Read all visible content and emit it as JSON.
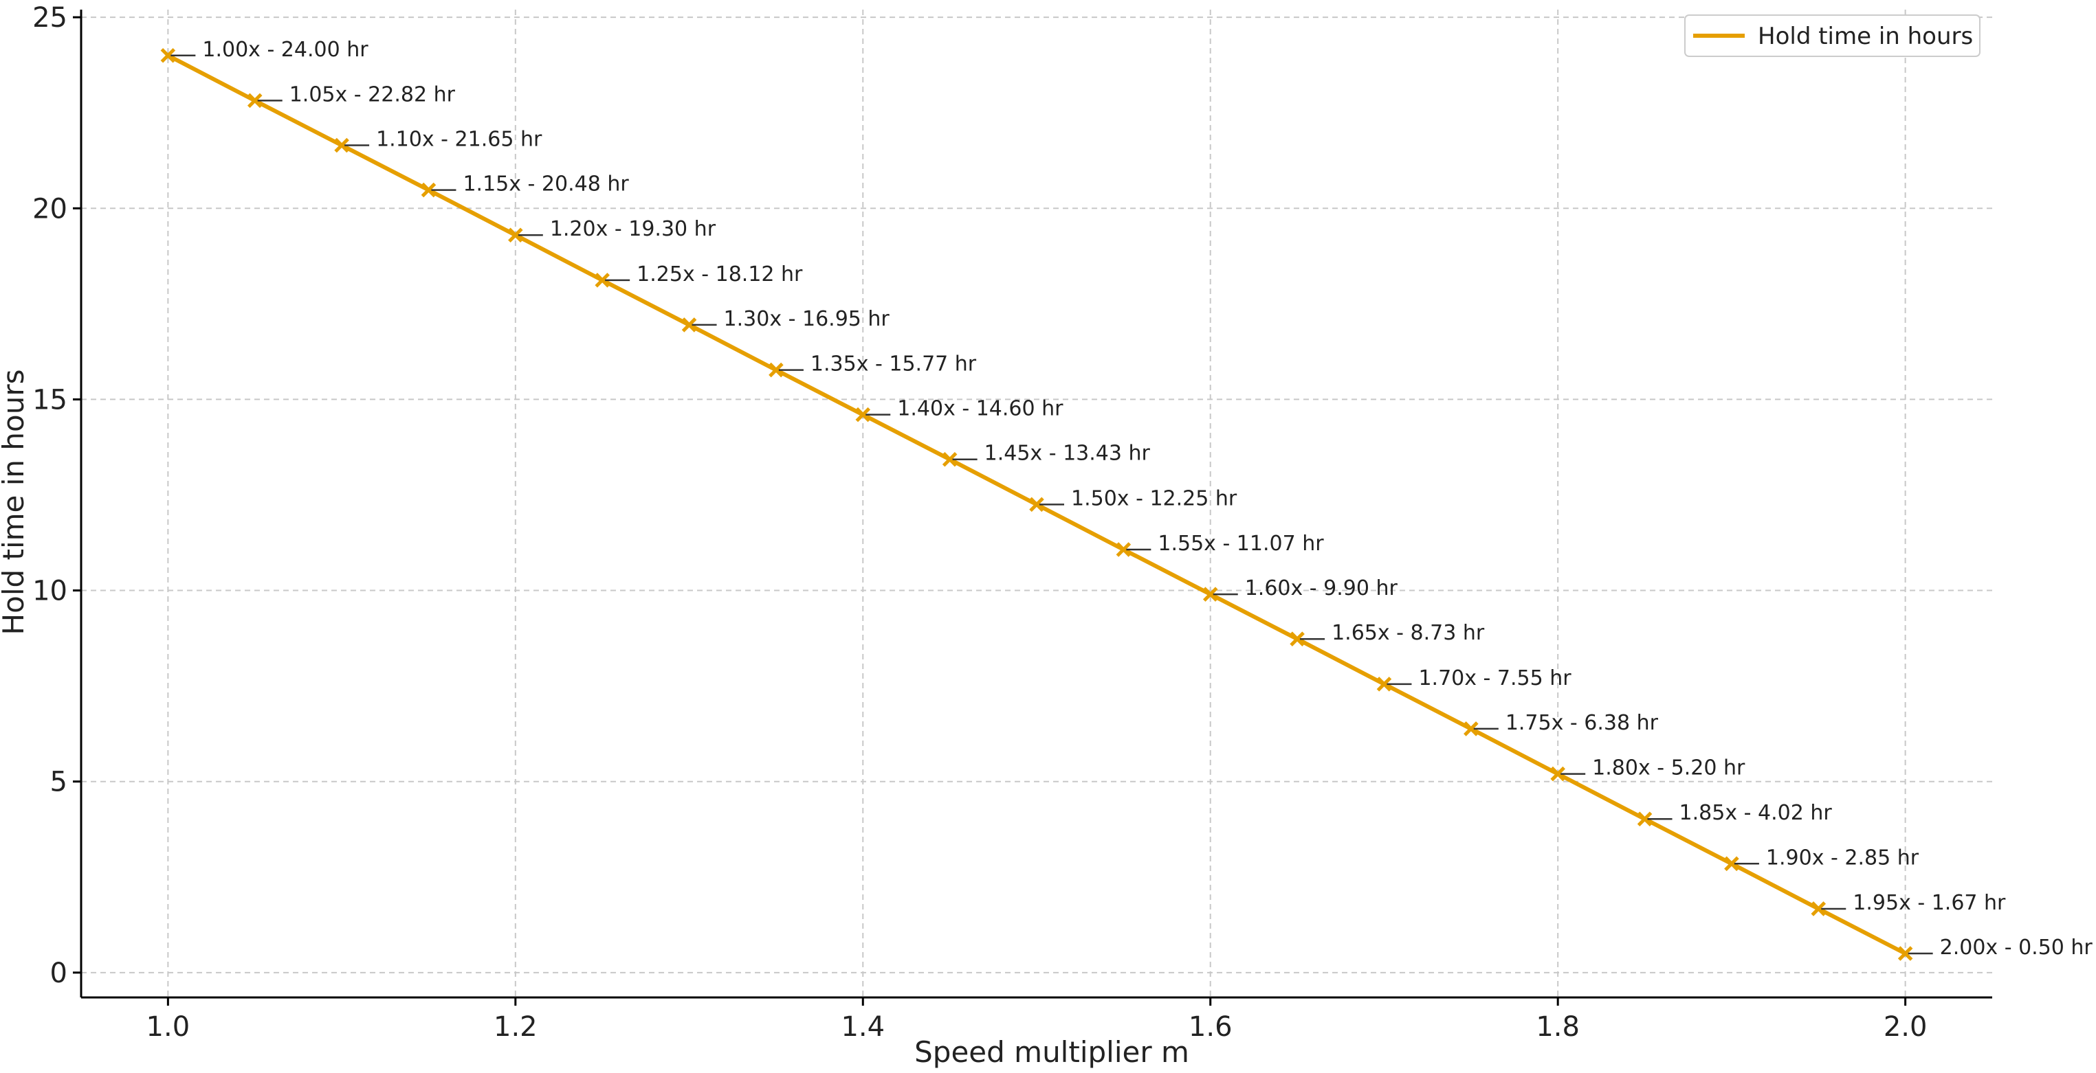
{
  "chart_data": {
    "type": "line",
    "title": "",
    "xlabel": "Speed multiplier m",
    "ylabel": "Hold time in hours",
    "xlim": [
      0.95,
      2.05
    ],
    "ylim": [
      -0.65,
      25.2
    ],
    "xticks": [
      1.0,
      1.2,
      1.4,
      1.6,
      1.8,
      2.0
    ],
    "xtick_labels": [
      "1.0",
      "1.2",
      "1.4",
      "1.6",
      "1.8",
      "2.0"
    ],
    "yticks": [
      0,
      5,
      10,
      15,
      20,
      25
    ],
    "ytick_labels": [
      "0",
      "5",
      "10",
      "15",
      "20",
      "25"
    ],
    "grid": true,
    "legend_position": "top-right",
    "marker": "x",
    "series": [
      {
        "name": "Hold time in hours",
        "color": "#E69F00",
        "x": [
          1.0,
          1.05,
          1.1,
          1.15,
          1.2,
          1.25,
          1.3,
          1.35,
          1.4,
          1.45,
          1.5,
          1.55,
          1.6,
          1.65,
          1.7,
          1.75,
          1.8,
          1.85,
          1.9,
          1.95,
          2.0
        ],
        "y": [
          24.0,
          22.82,
          21.65,
          20.48,
          19.3,
          18.12,
          16.95,
          15.77,
          14.6,
          13.43,
          12.25,
          11.07,
          9.9,
          8.73,
          7.55,
          6.38,
          5.2,
          4.02,
          2.85,
          1.67,
          0.5
        ],
        "labels": [
          "1.00x - 24.00 hr",
          "1.05x - 22.82 hr",
          "1.10x - 21.65 hr",
          "1.15x - 20.48 hr",
          "1.20x - 19.30 hr",
          "1.25x - 18.12 hr",
          "1.30x - 16.95 hr",
          "1.35x - 15.77 hr",
          "1.40x - 14.60 hr",
          "1.45x - 13.43 hr",
          "1.50x - 12.25 hr",
          "1.55x - 11.07 hr",
          "1.60x - 9.90 hr",
          "1.65x - 8.73 hr",
          "1.70x - 7.55 hr",
          "1.75x - 6.38 hr",
          "1.80x - 5.20 hr",
          "1.85x - 4.02 hr",
          "1.90x - 2.85 hr",
          "1.95x - 1.67 hr",
          "2.00x - 0.50 hr"
        ]
      }
    ]
  }
}
